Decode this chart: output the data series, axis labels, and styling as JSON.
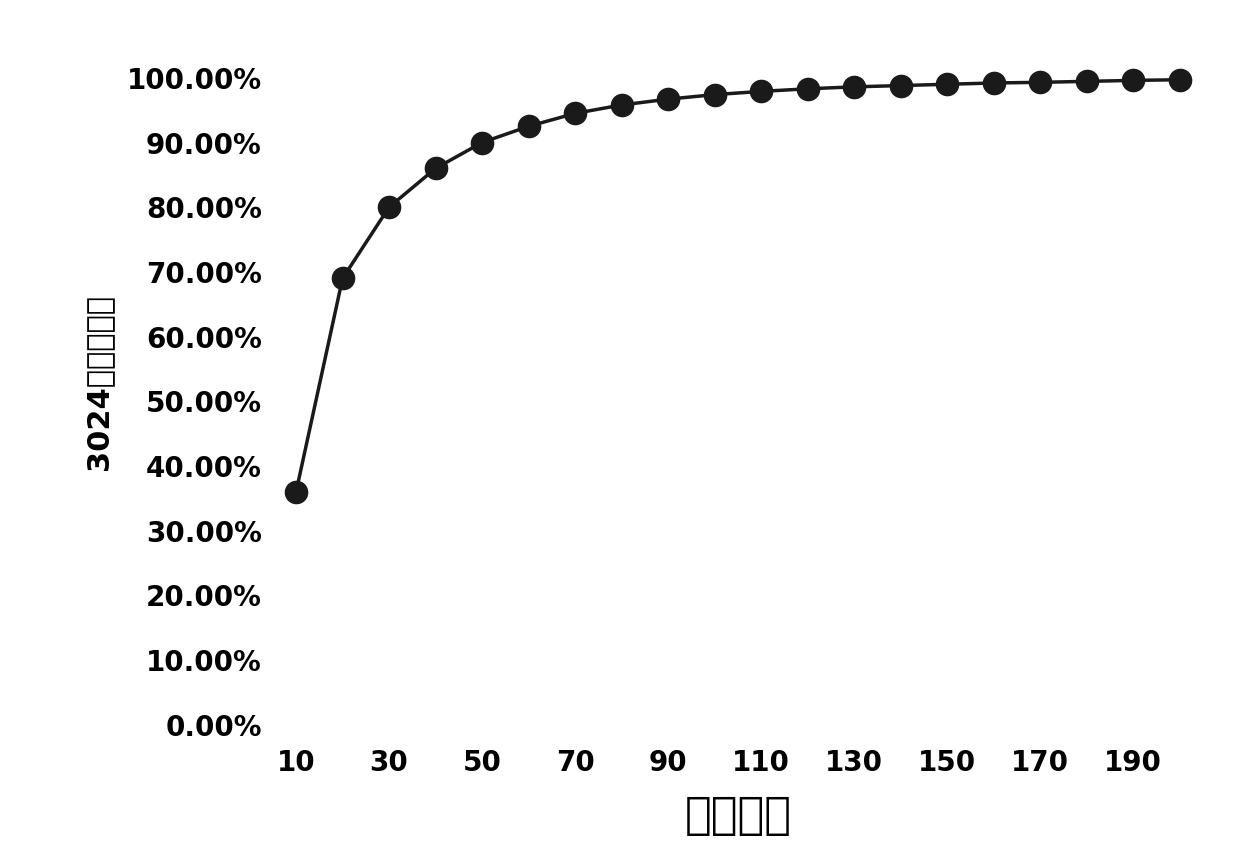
{
  "x_values": [
    10,
    20,
    30,
    40,
    50,
    60,
    70,
    80,
    90,
    100,
    110,
    120,
    130,
    140,
    150,
    160,
    170,
    180,
    190,
    200
  ],
  "y_values": [
    0.36,
    0.69,
    0.8,
    0.86,
    0.9,
    0.925,
    0.945,
    0.958,
    0.967,
    0.974,
    0.979,
    0.983,
    0.986,
    0.988,
    0.99,
    0.992,
    0.993,
    0.9945,
    0.996,
    0.997
  ],
  "xlabel": "标记数量",
  "ylabel": "3024样本区分度",
  "xlabel_fontsize": 32,
  "ylabel_fontsize": 22,
  "ytick_labels": [
    "0.00%",
    "10.00%",
    "20.00%",
    "30.00%",
    "40.00%",
    "50.00%",
    "60.00%",
    "70.00%",
    "80.00%",
    "90.00%",
    "100.00%"
  ],
  "xtick_values": [
    10,
    30,
    50,
    70,
    90,
    110,
    130,
    150,
    170,
    190
  ],
  "ytick_values": [
    0.0,
    0.1,
    0.2,
    0.3,
    0.4,
    0.5,
    0.6,
    0.7,
    0.8,
    0.9,
    1.0
  ],
  "line_color": "#1a1a1a",
  "marker_color": "#1a1a1a",
  "marker_size": 16,
  "line_width": 2.5,
  "background_color": "#ffffff",
  "ylim": [
    -0.02,
    1.08
  ],
  "xlim": [
    5,
    205
  ],
  "ytick_fontsize": 20,
  "xtick_fontsize": 20
}
